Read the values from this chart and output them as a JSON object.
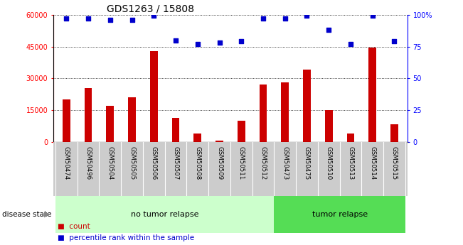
{
  "title": "GDS1263 / 15808",
  "samples": [
    "GSM50474",
    "GSM50496",
    "GSM50504",
    "GSM50505",
    "GSM50506",
    "GSM50507",
    "GSM50508",
    "GSM50509",
    "GSM50511",
    "GSM50512",
    "GSM50473",
    "GSM50475",
    "GSM50510",
    "GSM50513",
    "GSM50514",
    "GSM50515"
  ],
  "counts": [
    20000,
    25500,
    17000,
    21000,
    43000,
    11500,
    4000,
    800,
    10000,
    27000,
    28000,
    34000,
    15000,
    4000,
    44500,
    8500
  ],
  "percentiles": [
    97,
    97,
    96,
    96,
    99,
    80,
    77,
    78,
    79,
    97,
    97,
    99,
    88,
    77,
    99,
    79
  ],
  "no_tumor_count": 10,
  "tumor_count": 6,
  "left_ylim": [
    0,
    60000
  ],
  "right_ylim": [
    0,
    100
  ],
  "left_yticks": [
    0,
    15000,
    30000,
    45000,
    60000
  ],
  "right_yticks": [
    0,
    25,
    50,
    75,
    100
  ],
  "right_yticklabels": [
    "0",
    "25",
    "50",
    "75",
    "100%"
  ],
  "bar_color": "#cc0000",
  "scatter_color": "#0000cc",
  "no_tumor_bg": "#ccffcc",
  "tumor_bg": "#55dd55",
  "xlabel_bg": "#cccccc",
  "title_fontsize": 10,
  "tick_fontsize": 7,
  "label_fontsize": 8
}
